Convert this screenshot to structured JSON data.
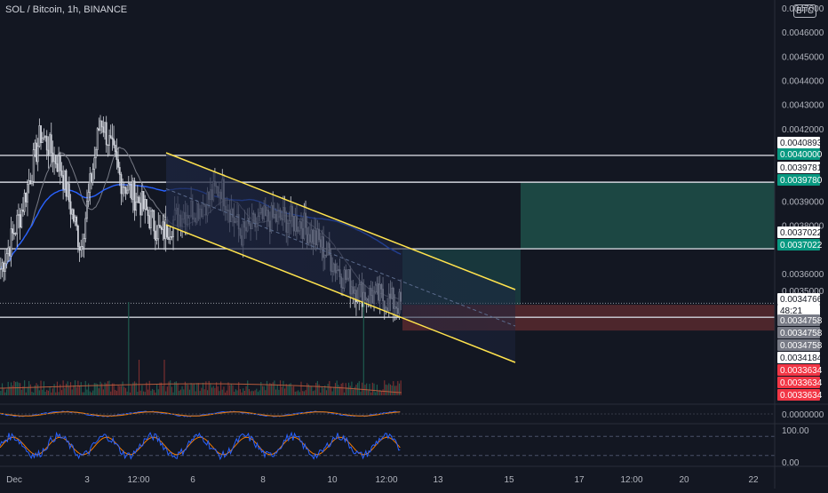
{
  "header": {
    "title": "SOL / Bitcoin, 1h, BINANCE"
  },
  "currency_badge": "BTC",
  "colors": {
    "background": "#131722",
    "axis_text": "#b2b5be",
    "up": "#26a69a",
    "down": "#ef5350",
    "price_line_white": "#d1d4dc",
    "ma_blue": "#2962ff",
    "ma_grey": "#787b86",
    "channel_yellow": "#ffe34d",
    "target_zone": "#1e4d47",
    "stop_zone": "#5c2a30",
    "channel_fill": "#1d2540"
  },
  "chart_data": [
    {
      "type": "line",
      "subtype": "candlestick",
      "title": "SOL / Bitcoin, 1h, BINANCE",
      "ylim": [
        0.00332,
        0.00474
      ],
      "y_ticks": [
        "0.0046000",
        "0.0045000",
        "0.0044000",
        "0.0043000",
        "0.0042000",
        "0.0039000",
        "0.0038000",
        "0.0036000"
      ],
      "y_tick_values": [
        0.0046,
        0.0045,
        0.0044,
        0.0043,
        0.0042,
        0.0039,
        0.0038,
        0.0036
      ],
      "top_tick_partial": "0.0047000",
      "hidden_tick_partial": "0.0035000",
      "x_ticks": [
        "Dec",
        "3",
        "12:00",
        "6",
        "8",
        "10",
        "12:00",
        "13",
        "15",
        "17",
        "12:00",
        "20",
        "22"
      ],
      "approx_close_path": [
        {
          "t": "Dec 1",
          "close": 0.00362
        },
        {
          "t": "Dec 2",
          "close": 0.00385
        },
        {
          "t": "Dec 2 12:00",
          "close": 0.00418
        },
        {
          "t": "Dec 3",
          "close": 0.00404
        },
        {
          "t": "Dec 3 12:00",
          "close": 0.00371
        },
        {
          "t": "Dec 4",
          "close": 0.00425
        },
        {
          "t": "Dec 4 12:00",
          "close": 0.00399
        },
        {
          "t": "Dec 5",
          "close": 0.00389
        },
        {
          "t": "Dec 6",
          "close": 0.00376
        },
        {
          "t": "Dec 6 12:00",
          "close": 0.00385
        },
        {
          "t": "Dec 7",
          "close": 0.00388
        },
        {
          "t": "Dec 7 12:00",
          "close": 0.00396
        },
        {
          "t": "Dec 8",
          "close": 0.00376
        },
        {
          "t": "Dec 8 12:00",
          "close": 0.00382
        },
        {
          "t": "Dec 9",
          "close": 0.00383
        },
        {
          "t": "Dec 9 12:00",
          "close": 0.00381
        },
        {
          "t": "Dec 10",
          "close": 0.00372
        },
        {
          "t": "Dec 10 12:00",
          "close": 0.0036
        },
        {
          "t": "Dec 11",
          "close": 0.00352
        },
        {
          "t": "Dec 11 12:00",
          "close": 0.0035
        },
        {
          "t": "Dec 12",
          "close": 0.00347
        }
      ],
      "horizontal_levels": [
        0.0040893,
        0.0039781,
        0.0037022,
        0.0034184
      ],
      "position": {
        "target": 0.003978,
        "entry": 0.0037022,
        "stop": 0.0033634
      },
      "price_labels": [
        {
          "text": "0.0040893",
          "value": 0.0040893,
          "style": "white"
        },
        {
          "text": "0.0040000",
          "value": 0.004,
          "style": "green"
        },
        {
          "text": "0.0039781",
          "value": 0.0039781,
          "style": "white"
        },
        {
          "text": "0.0039780",
          "value": 0.003978,
          "style": "green"
        },
        {
          "text": "0.0037022",
          "value": 0.0037022,
          "style": "white"
        },
        {
          "text": "0.0037022",
          "value": 0.0037022,
          "style": "green"
        },
        {
          "text": "0.0034766",
          "value": 0.0034766,
          "style": "white"
        },
        {
          "text": "48:21",
          "value": 0.0034766,
          "style": "countdown"
        },
        {
          "text": "0.0034758",
          "value": 0.0034758,
          "style": "grey"
        },
        {
          "text": "0.0034758",
          "value": 0.0034758,
          "style": "grey"
        },
        {
          "text": "0.0034758",
          "value": 0.0034758,
          "style": "grey"
        },
        {
          "text": "0.0034184",
          "value": 0.0034184,
          "style": "white"
        },
        {
          "text": "0.0033634",
          "value": 0.0033634,
          "style": "red"
        },
        {
          "text": "0.0033634",
          "value": 0.0033634,
          "style": "red"
        },
        {
          "text": "0.0033634",
          "value": 0.0033634,
          "style": "red"
        }
      ]
    },
    {
      "type": "line",
      "title": "",
      "y_ticks": [
        "0.0000000"
      ],
      "ylim": [
        -1,
        1
      ]
    },
    {
      "type": "line",
      "title": "",
      "y_ticks": [
        "100.00",
        "0.00"
      ],
      "ylim": [
        0,
        100
      ],
      "bands": [
        80,
        20
      ]
    }
  ]
}
